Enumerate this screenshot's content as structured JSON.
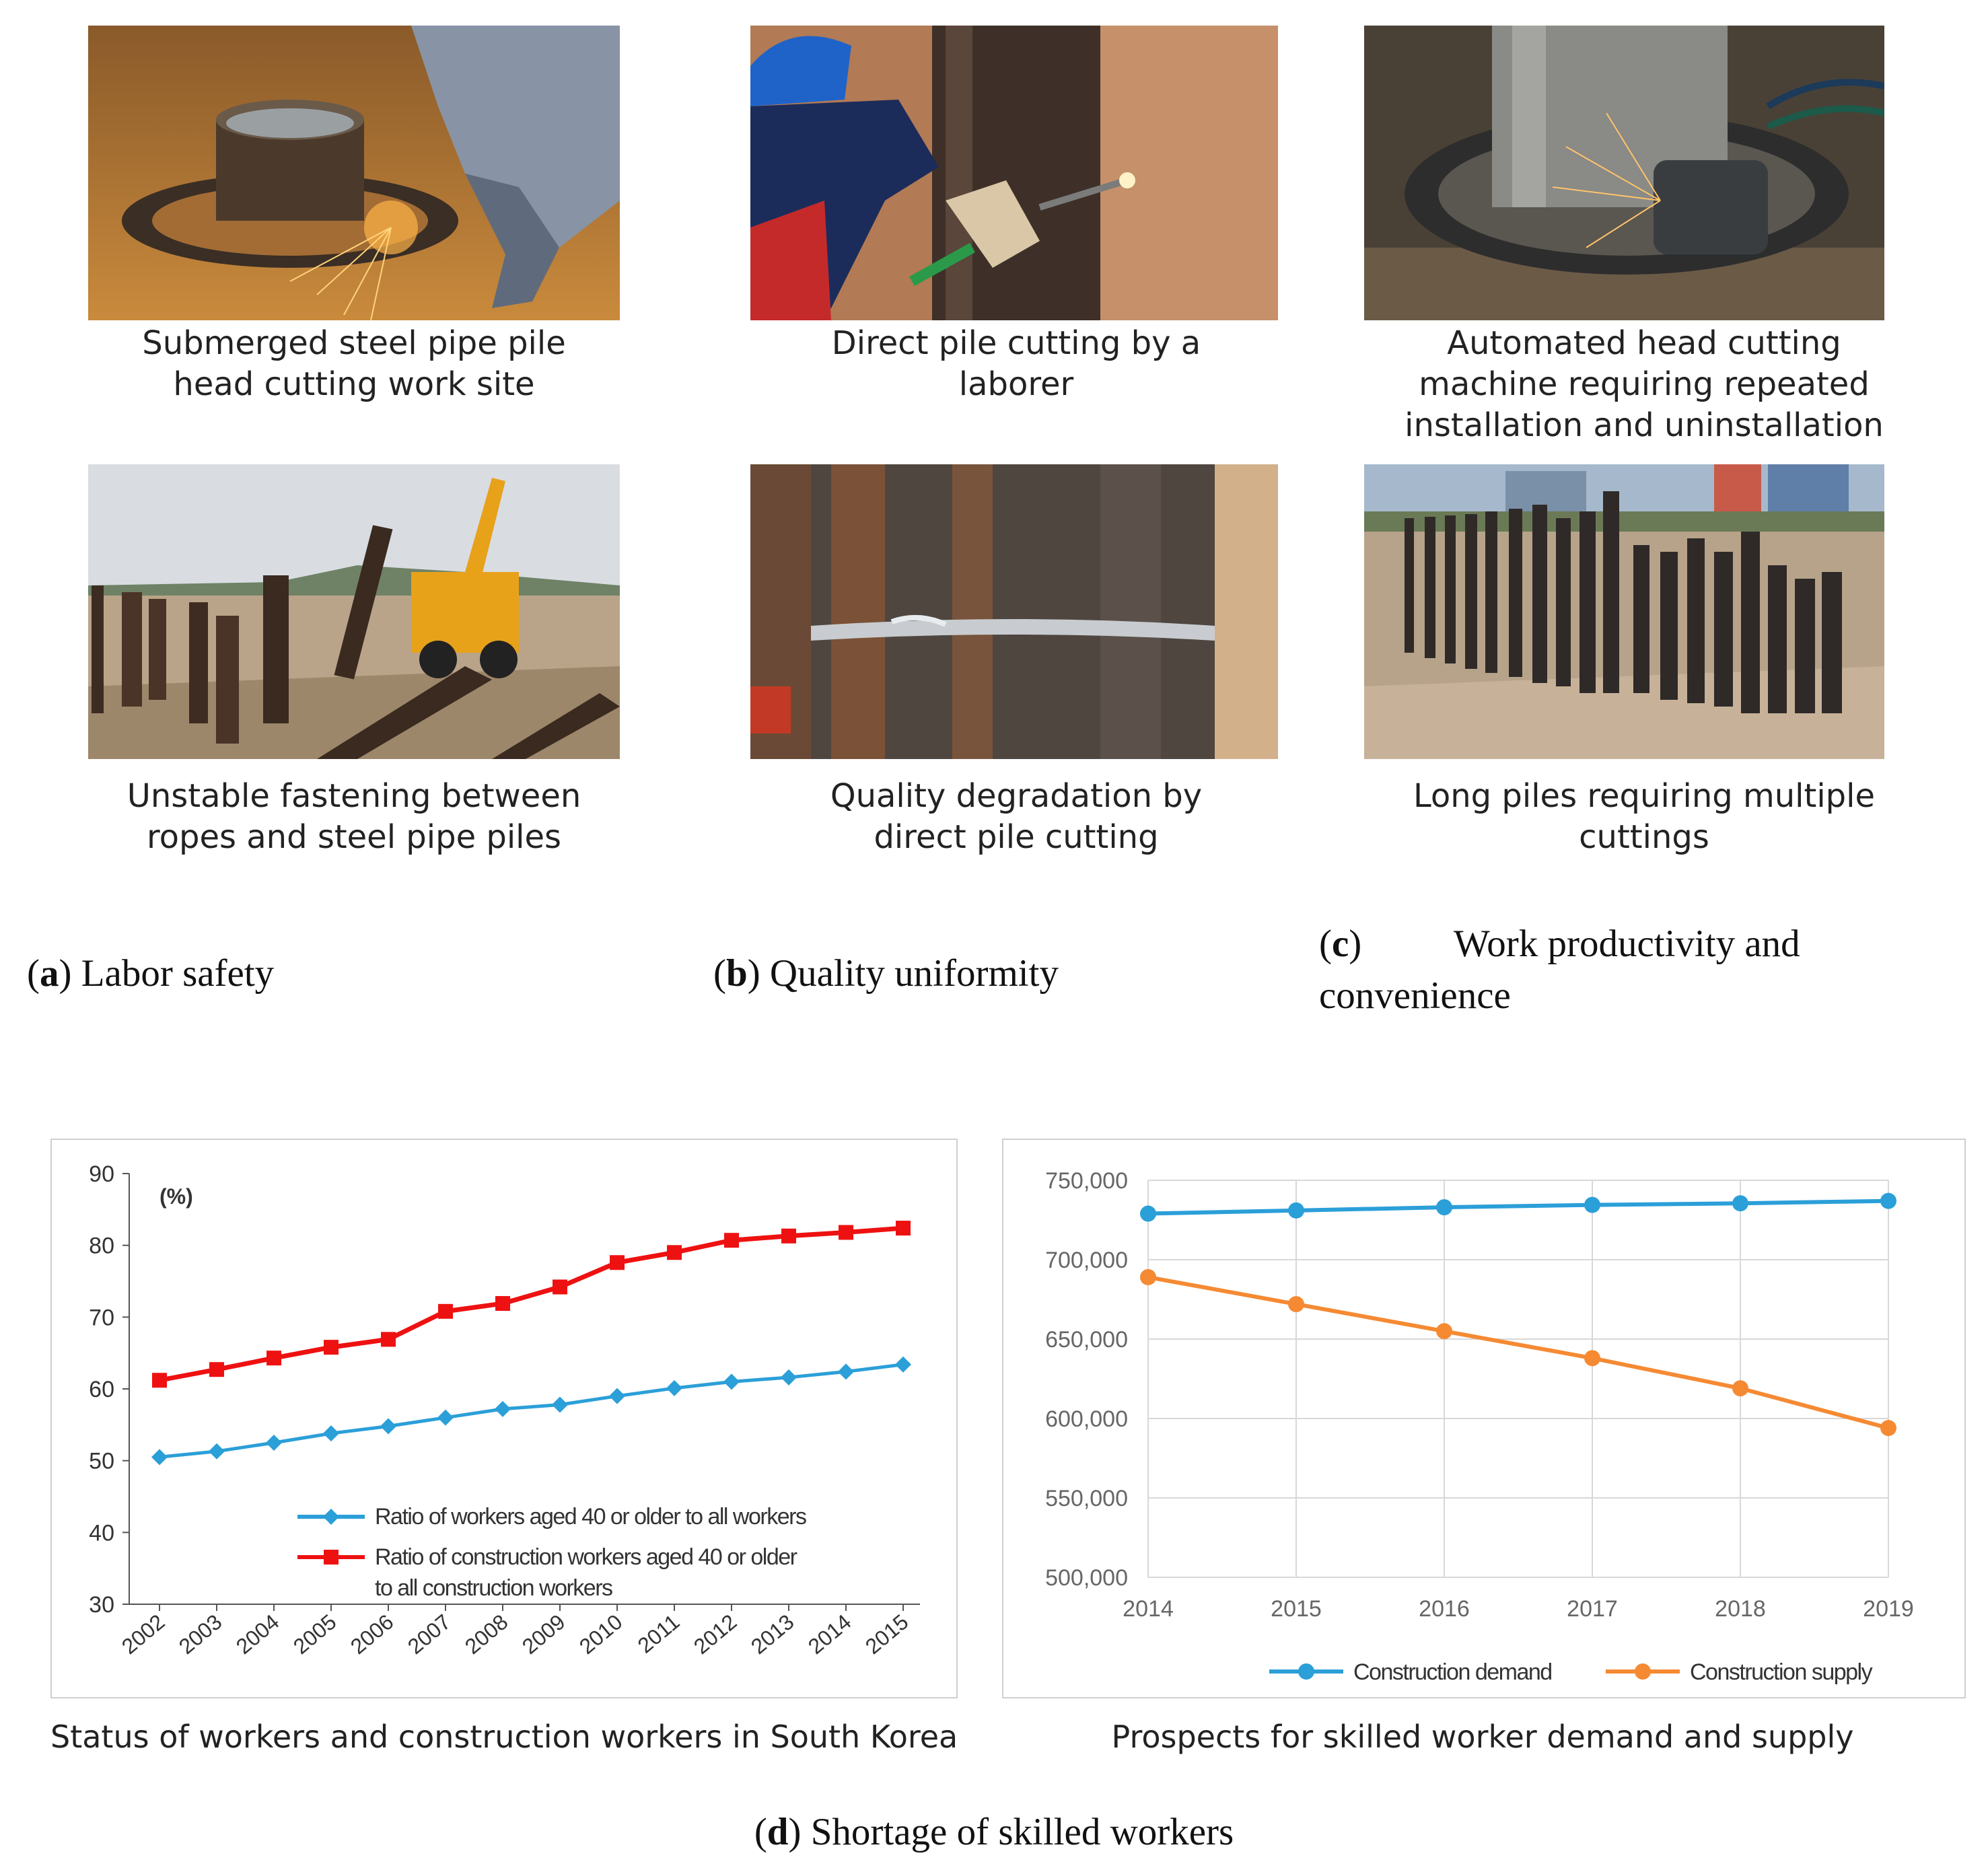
{
  "panels": {
    "a": {
      "letter": "a",
      "label": "Labor safety"
    },
    "b": {
      "letter": "b",
      "label": "Quality uniformity"
    },
    "c": {
      "letter": "c",
      "label_line1": "Work productivity and",
      "label_line2": "convenience"
    },
    "d": {
      "letter": "d",
      "label": "Shortage of skilled workers"
    }
  },
  "photos": [
    {
      "caption_lines": [
        "Submerged steel pipe pile",
        "head cutting work site"
      ]
    },
    {
      "caption_lines": [
        "Direct pile cutting by a",
        "laborer"
      ]
    },
    {
      "caption_lines": [
        "Automated head cutting",
        "machine requiring repeated",
        "installation and uninstallation"
      ]
    },
    {
      "caption_lines": [
        "Unstable fastening between",
        "ropes and steel pipe piles"
      ]
    },
    {
      "caption_lines": [
        "Quality degradation by",
        "direct pile cutting"
      ]
    },
    {
      "caption_lines": [
        "Long piles requiring multiple",
        "cuttings"
      ]
    }
  ],
  "chart_data": [
    {
      "type": "line",
      "caption": "Status of workers and construction workers in South Korea",
      "unit_label": "(%)",
      "categories": [
        "2002",
        "2003",
        "2004",
        "2005",
        "2006",
        "2007",
        "2008",
        "2009",
        "2010",
        "2011",
        "2012",
        "2013",
        "2014",
        "2015"
      ],
      "ylim": [
        30,
        90
      ],
      "yticks": [
        "30",
        "40",
        "50",
        "60",
        "70",
        "80",
        "90"
      ],
      "legend_placement": "bottom-right",
      "series": [
        {
          "name": "Ratio of workers aged 40 or older to all workers",
          "color": "#2b9fd8",
          "marker": "diamond",
          "values": [
            50.5,
            51.3,
            52.5,
            53.8,
            54.8,
            56.0,
            57.2,
            57.8,
            59.0,
            60.1,
            61.0,
            61.6,
            62.4,
            63.4
          ]
        },
        {
          "name": "Ratio of construction workers aged 40 or older to all construction workers",
          "name_line1": "Ratio of construction workers aged 40 or older",
          "name_line2": "to all construction workers",
          "color": "#ee1111",
          "marker": "square",
          "values": [
            61.2,
            62.7,
            64.3,
            65.8,
            66.9,
            70.8,
            71.9,
            74.2,
            77.6,
            79.0,
            80.7,
            81.3,
            81.8,
            82.4
          ]
        }
      ]
    },
    {
      "type": "line",
      "caption": "Prospects for skilled worker demand and supply",
      "categories": [
        "2014",
        "2015",
        "2016",
        "2017",
        "2018",
        "2019"
      ],
      "ylim": [
        500000,
        750000
      ],
      "yticks": [
        "500,000",
        "550,000",
        "600,000",
        "650,000",
        "700,000",
        "750,000"
      ],
      "grid": true,
      "legend_placement": "bottom",
      "series": [
        {
          "name": "Construction demand",
          "color": "#2b9fd8",
          "marker": "circle",
          "values": [
            729000,
            731000,
            733000,
            734500,
            735500,
            737000
          ]
        },
        {
          "name": "Construction supply",
          "color": "#f58a33",
          "marker": "circle",
          "values": [
            689000,
            672000,
            655000,
            638000,
            619000,
            594000
          ]
        }
      ]
    }
  ]
}
